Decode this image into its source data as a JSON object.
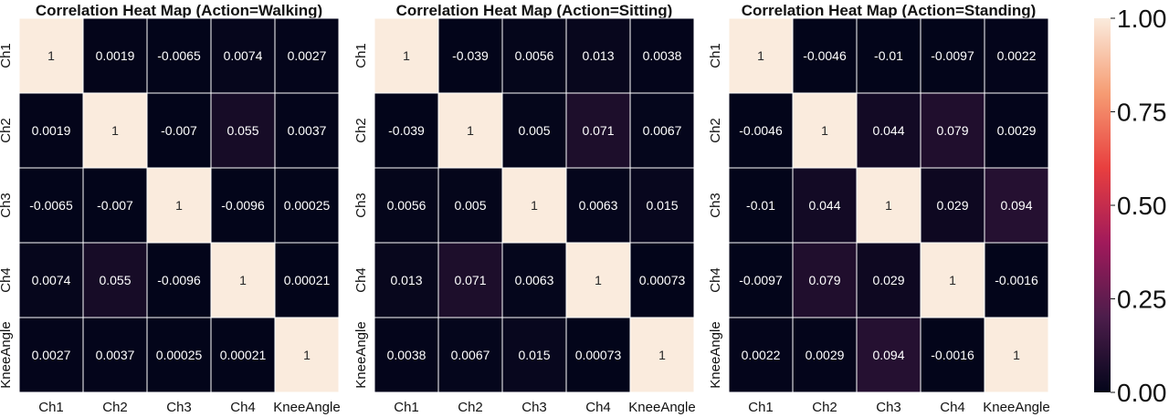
{
  "chart_data": [
    {
      "type": "heatmap",
      "title": "Correlation Heat Map (Action=Walking)",
      "x_labels": [
        "Ch1",
        "Ch2",
        "Ch3",
        "Ch4",
        "KneeAngle"
      ],
      "y_labels": [
        "Ch1",
        "Ch2",
        "Ch3",
        "Ch4",
        "KneeAngle"
      ],
      "values": [
        [
          1,
          0.0019,
          -0.0065,
          0.0074,
          0.0027
        ],
        [
          0.0019,
          1,
          -0.007,
          0.055,
          0.0037
        ],
        [
          -0.0065,
          -0.007,
          1,
          -0.0096,
          0.00025
        ],
        [
          0.0074,
          0.055,
          -0.0096,
          1,
          0.00021
        ],
        [
          0.0027,
          0.0037,
          0.00025,
          0.00021,
          1
        ]
      ],
      "vmin": 0,
      "vmax": 1
    },
    {
      "type": "heatmap",
      "title": "Correlation Heat Map (Action=Sitting)",
      "x_labels": [
        "Ch1",
        "Ch2",
        "Ch3",
        "Ch4",
        "KneeAngle"
      ],
      "y_labels": [
        "Ch1",
        "Ch2",
        "Ch3",
        "Ch4",
        "KneeAngle"
      ],
      "values": [
        [
          1,
          -0.039,
          0.0056,
          0.013,
          0.0038
        ],
        [
          -0.039,
          1,
          0.005,
          0.071,
          0.0067
        ],
        [
          0.0056,
          0.005,
          1,
          0.0063,
          0.015
        ],
        [
          0.013,
          0.071,
          0.0063,
          1,
          0.00073
        ],
        [
          0.0038,
          0.0067,
          0.015,
          0.00073,
          1
        ]
      ],
      "vmin": 0,
      "vmax": 1
    },
    {
      "type": "heatmap",
      "title": "Correlation Heat Map (Action=Standing)",
      "x_labels": [
        "Ch1",
        "Ch2",
        "Ch3",
        "Ch4",
        "KneeAngle"
      ],
      "y_labels": [
        "Ch1",
        "Ch2",
        "Ch3",
        "Ch4",
        "KneeAngle"
      ],
      "values": [
        [
          1,
          -0.0046,
          -0.01,
          -0.0097,
          0.0022
        ],
        [
          -0.0046,
          1,
          0.044,
          0.079,
          0.0029
        ],
        [
          -0.01,
          0.044,
          1,
          0.029,
          0.094
        ],
        [
          -0.0097,
          0.079,
          0.029,
          1,
          -0.0016
        ],
        [
          0.0022,
          0.0029,
          0.094,
          -0.0016,
          1
        ]
      ],
      "vmin": 0,
      "vmax": 1
    }
  ],
  "colorbar": {
    "ticks": [
      "1.00",
      "0.75",
      "0.50",
      "0.25",
      "0.00"
    ],
    "tick_values": [
      1,
      0.75,
      0.5,
      0.25,
      0
    ],
    "colormap": "rocket",
    "stops": [
      "#03051a",
      "#4c1d4b",
      "#a11a5b",
      "#e83f3f",
      "#f69c73",
      "#faebdd"
    ]
  }
}
